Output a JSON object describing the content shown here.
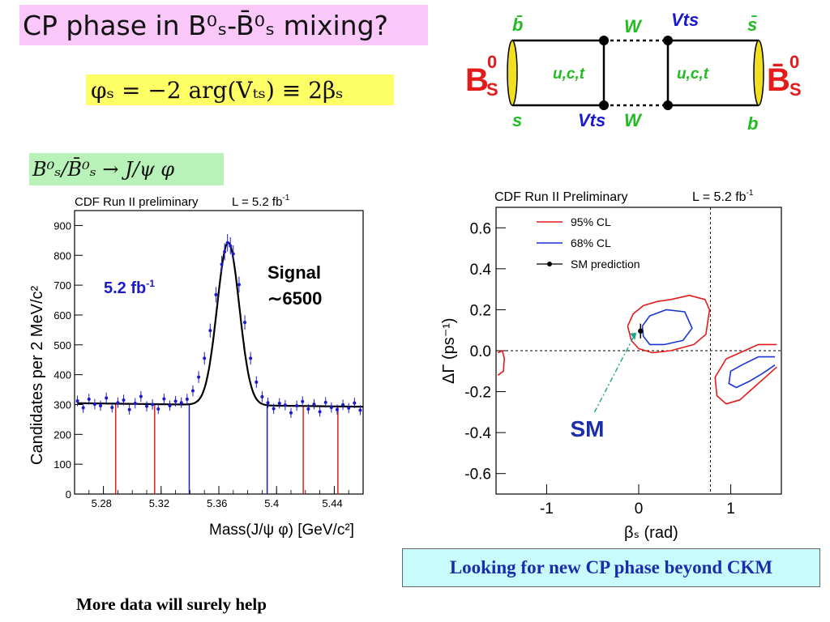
{
  "slide": {
    "title": "CP phase in B⁰ₛ-B̄⁰ₛ mixing?",
    "formula": "φₛ = −2 arg(Vₜₛ) ≡ 2βₛ",
    "decay": "B⁰ₛ/B̄⁰ₛ → J/ψ φ",
    "banner": "Looking for new CP phase beyond CKM",
    "footer_note": "More data will surely help"
  },
  "diagram": {
    "b_bar": "b̄",
    "s": "s",
    "W_top": "W",
    "Vts_top": "Vts",
    "s_bar": "s̄",
    "b": "b",
    "Vts_bottom": "Vts",
    "W_bottom": "W",
    "quarks_left": "u,c,t",
    "quarks_right": "u,c,t",
    "Bs_left": "B",
    "Bs_right": "B̄",
    "sub_s": "S",
    "sup_0": "0",
    "colors": {
      "green": "#22bb22",
      "blue": "#1a1acc",
      "red": "#e31b1b",
      "yellow": "#f0e020"
    }
  },
  "chart_data": [
    {
      "type": "scatter",
      "header": "CDF Run II preliminary",
      "lumi": "L = 5.2 fb",
      "lumi_sup": "-1",
      "xlabel": "Mass(J/ψ φ) [GeV/c²]",
      "ylabel": "Candidates per 2 MeV/c²",
      "xlim": [
        5.26,
        5.46
      ],
      "ylim": [
        0,
        950
      ],
      "x_ticks": [
        "5.28",
        "5.32",
        "5.36",
        "5.4",
        "5.44"
      ],
      "y_ticks": [
        "0",
        "100",
        "200",
        "300",
        "400",
        "500",
        "600",
        "700",
        "800",
        "900"
      ],
      "annotation_lumi": "5.2 fb",
      "annotation_lumi_sup": "-1",
      "annotation_signal_1": "Signal",
      "annotation_signal_2": "∼6500",
      "fit": {
        "background": 298,
        "slope": -60,
        "peak_mean": 5.3665,
        "peak_amplitude": 545,
        "peak_sigma": 0.0077
      },
      "points": [
        {
          "x": 5.262,
          "y": 312
        },
        {
          "x": 5.266,
          "y": 289
        },
        {
          "x": 5.27,
          "y": 318
        },
        {
          "x": 5.274,
          "y": 301
        },
        {
          "x": 5.278,
          "y": 296
        },
        {
          "x": 5.282,
          "y": 322
        },
        {
          "x": 5.286,
          "y": 290
        },
        {
          "x": 5.29,
          "y": 306
        },
        {
          "x": 5.294,
          "y": 315
        },
        {
          "x": 5.298,
          "y": 283
        },
        {
          "x": 5.302,
          "y": 304
        },
        {
          "x": 5.306,
          "y": 327
        },
        {
          "x": 5.31,
          "y": 294
        },
        {
          "x": 5.314,
          "y": 300
        },
        {
          "x": 5.318,
          "y": 285
        },
        {
          "x": 5.322,
          "y": 319
        },
        {
          "x": 5.326,
          "y": 296
        },
        {
          "x": 5.33,
          "y": 311
        },
        {
          "x": 5.334,
          "y": 306
        },
        {
          "x": 5.338,
          "y": 318
        },
        {
          "x": 5.342,
          "y": 346
        },
        {
          "x": 5.346,
          "y": 392
        },
        {
          "x": 5.35,
          "y": 455
        },
        {
          "x": 5.354,
          "y": 548
        },
        {
          "x": 5.358,
          "y": 668
        },
        {
          "x": 5.362,
          "y": 770
        },
        {
          "x": 5.364,
          "y": 812
        },
        {
          "x": 5.366,
          "y": 842
        },
        {
          "x": 5.368,
          "y": 832
        },
        {
          "x": 5.37,
          "y": 805
        },
        {
          "x": 5.374,
          "y": 702
        },
        {
          "x": 5.378,
          "y": 575
        },
        {
          "x": 5.382,
          "y": 455
        },
        {
          "x": 5.386,
          "y": 375
        },
        {
          "x": 5.39,
          "y": 326
        },
        {
          "x": 5.394,
          "y": 306
        },
        {
          "x": 5.398,
          "y": 286
        },
        {
          "x": 5.402,
          "y": 304
        },
        {
          "x": 5.406,
          "y": 298
        },
        {
          "x": 5.41,
          "y": 272
        },
        {
          "x": 5.414,
          "y": 296
        },
        {
          "x": 5.418,
          "y": 310
        },
        {
          "x": 5.422,
          "y": 285
        },
        {
          "x": 5.426,
          "y": 301
        },
        {
          "x": 5.43,
          "y": 276
        },
        {
          "x": 5.434,
          "y": 307
        },
        {
          "x": 5.438,
          "y": 290
        },
        {
          "x": 5.442,
          "y": 283
        },
        {
          "x": 5.446,
          "y": 299
        },
        {
          "x": 5.45,
          "y": 288
        },
        {
          "x": 5.454,
          "y": 305
        },
        {
          "x": 5.458,
          "y": 281
        }
      ],
      "red_lines_x": [
        5.2885,
        5.3155,
        5.4185,
        5.4425
      ],
      "blue_lines_x": [
        5.3395,
        5.3935
      ]
    },
    {
      "type": "contour",
      "header": "CDF Run II Preliminary",
      "lumi": "L = 5.2 fb",
      "lumi_sup": "-1",
      "xlabel": "βₛ (rad)",
      "ylabel": "ΔΓ (ps⁻¹)",
      "xlim": [
        -1.55,
        1.55
      ],
      "ylim": [
        -0.7,
        0.7
      ],
      "x_ticks": [
        {
          "v": -1,
          "label": "-1"
        },
        {
          "v": 0,
          "label": "0"
        },
        {
          "v": 1,
          "label": "1"
        }
      ],
      "y_ticks": [
        {
          "v": 0.6,
          "label": "0.6"
        },
        {
          "v": 0.4,
          "label": "0.4"
        },
        {
          "v": 0.2,
          "label": "0.2"
        },
        {
          "v": 0.0,
          "label": "0.0"
        },
        {
          "v": -0.2,
          "label": "-0.2"
        },
        {
          "v": -0.4,
          "label": "-0.4"
        },
        {
          "v": -0.6,
          "label": "-0.6"
        }
      ],
      "legend": [
        {
          "label": "95% CL",
          "color": "#e31b1b",
          "style": "line"
        },
        {
          "label": "68% CL",
          "color": "#1a34d6",
          "style": "line"
        },
        {
          "label": "SM prediction",
          "color": "#000000",
          "style": "point"
        }
      ],
      "legend_position": "top-left",
      "vertical_dashed_line_x": 0.78,
      "horizontal_dashed_line_y": 0.0,
      "sm_point": {
        "x": 0.02,
        "y": 0.096,
        "err": 0.036
      },
      "sm_label": "SM",
      "sm_arrow_from": {
        "x": -0.48,
        "y": -0.3
      },
      "contours": [
        {
          "cl": "95% CL",
          "color": "#e31b1b",
          "points": [
            [
              -0.12,
              0.12
            ],
            [
              -0.06,
              0.18
            ],
            [
              0.05,
              0.22
            ],
            [
              0.2,
              0.24
            ],
            [
              0.35,
              0.25
            ],
            [
              0.55,
              0.27
            ],
            [
              0.72,
              0.25
            ],
            [
              0.77,
              0.2
            ],
            [
              0.73,
              0.08
            ],
            [
              0.6,
              0.03
            ],
            [
              0.35,
              0.0
            ],
            [
              0.15,
              -0.01
            ],
            [
              0.0,
              0.01
            ],
            [
              -0.08,
              0.05
            ],
            [
              -0.12,
              0.12
            ]
          ]
        },
        {
          "cl": "68% CL",
          "color": "#1a34d6",
          "points": [
            [
              0.04,
              0.12
            ],
            [
              0.12,
              0.17
            ],
            [
              0.3,
              0.2
            ],
            [
              0.5,
              0.19
            ],
            [
              0.58,
              0.11
            ],
            [
              0.48,
              0.05
            ],
            [
              0.28,
              0.03
            ],
            [
              0.12,
              0.03
            ],
            [
              0.05,
              0.07
            ],
            [
              0.04,
              0.12
            ]
          ]
        },
        {
          "cl": "95% CL",
          "color": "#e31b1b",
          "points": [
            [
              1.5,
              0.03
            ],
            [
              1.3,
              0.03
            ],
            [
              1.1,
              -0.01
            ],
            [
              0.95,
              -0.04
            ],
            [
              0.83,
              -0.13
            ],
            [
              0.85,
              -0.22
            ],
            [
              0.95,
              -0.26
            ],
            [
              1.1,
              -0.24
            ],
            [
              1.25,
              -0.18
            ],
            [
              1.4,
              -0.12
            ],
            [
              1.5,
              -0.08
            ]
          ]
        },
        {
          "cl": "68% CL",
          "color": "#1a34d6",
          "points": [
            [
              1.48,
              -0.03
            ],
            [
              1.3,
              -0.03
            ],
            [
              1.12,
              -0.07
            ],
            [
              1.0,
              -0.1
            ],
            [
              0.98,
              -0.16
            ],
            [
              1.06,
              -0.18
            ],
            [
              1.2,
              -0.15
            ],
            [
              1.35,
              -0.11
            ],
            [
              1.48,
              -0.07
            ]
          ]
        },
        {
          "cl": "95% CL",
          "color": "#e31b1b",
          "points": [
            [
              -1.53,
              -0.01
            ],
            [
              -1.48,
              0.0
            ],
            [
              -1.46,
              -0.04
            ],
            [
              -1.47,
              -0.1
            ],
            [
              -1.53,
              -0.12
            ]
          ]
        }
      ]
    }
  ]
}
